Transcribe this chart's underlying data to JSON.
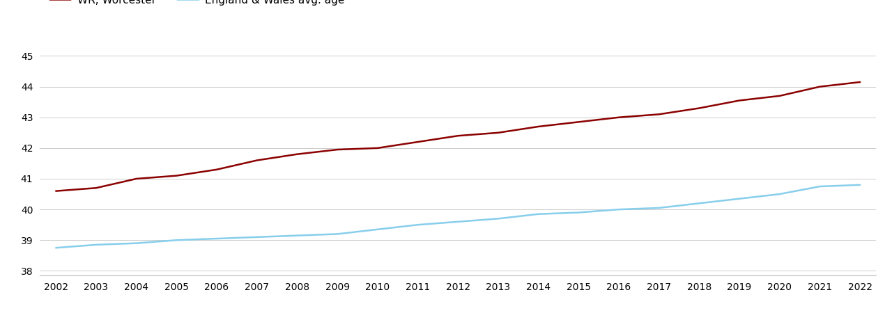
{
  "years": [
    2002,
    2003,
    2004,
    2005,
    2006,
    2007,
    2008,
    2009,
    2010,
    2011,
    2012,
    2013,
    2014,
    2015,
    2016,
    2017,
    2018,
    2019,
    2020,
    2021,
    2022
  ],
  "worcester": [
    40.6,
    40.7,
    41.0,
    41.1,
    41.3,
    41.6,
    41.8,
    41.95,
    42.0,
    42.2,
    42.4,
    42.5,
    42.7,
    42.85,
    43.0,
    43.1,
    43.3,
    43.55,
    43.7,
    44.0,
    44.15
  ],
  "england_wales": [
    38.75,
    38.85,
    38.9,
    39.0,
    39.05,
    39.1,
    39.15,
    39.2,
    39.35,
    39.5,
    39.6,
    39.7,
    39.85,
    39.9,
    40.0,
    40.05,
    40.2,
    40.35,
    40.5,
    40.75,
    40.8
  ],
  "worcester_color": "#8B0000",
  "england_wales_color": "#87CEEB",
  "ylim": [
    37.85,
    45.6
  ],
  "yticks": [
    38,
    39,
    40,
    41,
    42,
    43,
    44,
    45
  ],
  "background_color": "#ffffff",
  "grid_color": "#cccccc",
  "line_width": 1.8,
  "legend_fontsize": 11,
  "tick_fontsize": 10
}
